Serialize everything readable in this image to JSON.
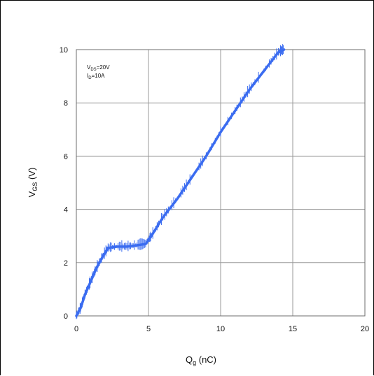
{
  "chart_data": {
    "type": "line",
    "xlabel": "Q",
    "xlabel_sub": "g",
    "xlabel_unit": " (nC)",
    "ylabel": "V",
    "ylabel_sub": "GS",
    "ylabel_unit": " (V)",
    "xlim": [
      0,
      20
    ],
    "ylim": [
      0,
      10
    ],
    "x_ticks": [
      0,
      5,
      10,
      15,
      20
    ],
    "y_ticks": [
      0,
      2,
      4,
      6,
      8,
      10
    ],
    "grid": true,
    "line_color": "#3b6cf0",
    "annotations": [
      {
        "main": "V",
        "sub": "DS",
        "value": "=20V"
      },
      {
        "main": "I",
        "sub": "D",
        "value": "=10A"
      }
    ],
    "series": [
      {
        "x": [
          0.0,
          0.3,
          0.6,
          1.0,
          1.4,
          1.8,
          2.2,
          2.8,
          3.5,
          4.2,
          4.8,
          5.2,
          6.0,
          7.0,
          8.0,
          9.0,
          10.0,
          11.0,
          12.0,
          13.0,
          14.0,
          14.4
        ],
        "y": [
          0.0,
          0.3,
          0.8,
          1.3,
          1.8,
          2.2,
          2.55,
          2.6,
          2.6,
          2.65,
          2.7,
          3.0,
          3.7,
          4.4,
          5.2,
          6.0,
          6.9,
          7.7,
          8.5,
          9.2,
          9.9,
          10.0
        ]
      }
    ]
  }
}
